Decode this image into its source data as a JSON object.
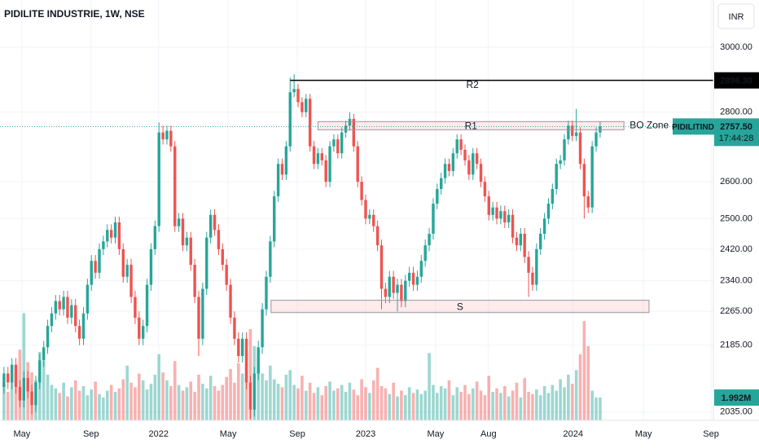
{
  "chart_data": {
    "type": "candlestick",
    "title": "PIDILITE INDUSTRIE, 1W, NSE",
    "currency": "INR",
    "symbol": "PIDILITIND",
    "last_price": {
      "value": 2757.5,
      "label": "2757.50"
    },
    "countdown": "17:44:28",
    "up_color": "#26a69a",
    "down_color": "#ef5350",
    "log_scale": true,
    "grid": true,
    "xlim": [
      -1,
      178.5
    ],
    "xticks": [
      {
        "value": 4.5,
        "label": "May"
      },
      {
        "value": 21.9,
        "label": "Sep"
      },
      {
        "value": 38.9,
        "label": "2022"
      },
      {
        "value": 56.4,
        "label": "May"
      },
      {
        "value": 73.8,
        "label": "Sep"
      },
      {
        "value": 91.0,
        "label": "2023"
      },
      {
        "value": 108.6,
        "label": "May"
      },
      {
        "value": 121.9,
        "label": "Aug"
      },
      {
        "value": 143.2,
        "label": "2024"
      },
      {
        "value": 160.9,
        "label": "May"
      },
      {
        "value": 177.9,
        "label": "Sep"
      }
    ],
    "ylim": [
      2017,
      3155
    ],
    "yticks": [
      {
        "value": 3000,
        "label": "3000.00"
      },
      {
        "value": 2800,
        "label": "2800.00"
      },
      {
        "value": 2600,
        "label": "2600.00"
      },
      {
        "value": 2500,
        "label": "2500.00"
      },
      {
        "value": 2420,
        "label": "2420.00"
      },
      {
        "value": 2340,
        "label": "2340.00"
      },
      {
        "value": 2265,
        "label": "2265.00"
      },
      {
        "value": 2185,
        "label": "2185.00"
      },
      {
        "value": 2035,
        "label": "2035.00"
      }
    ],
    "volume_ylim": [
      0,
      10
    ],
    "volume_label": {
      "value": 1.992,
      "label": "1.992M"
    },
    "levels": [
      {
        "name": "R2",
        "value": {
          "value": 2896.3,
          "label": "2896.30"
        },
        "from": 72,
        "color": "#f23645"
      }
    ],
    "zones": [
      {
        "name": "R1",
        "top": 2772,
        "bottom": 2748,
        "from": 79,
        "to": 156,
        "color": "#f23645",
        "note": "BO Zone"
      },
      {
        "name": "S",
        "top": 2292,
        "bottom": 2262,
        "from": 67.2,
        "to": 162.3,
        "color": "#131722"
      }
    ],
    "open": [
      2090,
      2120,
      2100,
      2140,
      2090,
      2060,
      2110,
      2080,
      2050,
      2100,
      2150,
      2180,
      2230,
      2260,
      2290,
      2270,
      2300,
      2250,
      2280,
      2230,
      2200,
      2260,
      2330,
      2390,
      2360,
      2420,
      2440,
      2470,
      2450,
      2490,
      2420,
      2350,
      2380,
      2300,
      2250,
      2200,
      2230,
      2330,
      2420,
      2480,
      2740,
      2720,
      2745,
      2700,
      2480,
      2500,
      2430,
      2450,
      2380,
      2300,
      2200,
      2320,
      2450,
      2510,
      2470,
      2420,
      2380,
      2330,
      2250,
      2200,
      2160,
      2200,
      2100,
      2040,
      2120,
      2180,
      2270,
      2350,
      2440,
      2560,
      2650,
      2620,
      2700,
      2860,
      2870,
      2830,
      2800,
      2840,
      2700,
      2650,
      2680,
      2660,
      2600,
      2700,
      2720,
      2680,
      2740,
      2760,
      2780,
      2700,
      2600,
      2550,
      2500,
      2510,
      2480,
      2430,
      2320,
      2300,
      2350,
      2310,
      2330,
      2290,
      2340,
      2360,
      2330,
      2350,
      2390,
      2430,
      2460,
      2540,
      2580,
      2610,
      2650,
      2630,
      2680,
      2720,
      2690,
      2660,
      2620,
      2680,
      2650,
      2600,
      2560,
      2510,
      2530,
      2500,
      2520,
      2490,
      2510,
      2450,
      2430,
      2460,
      2400,
      2360,
      2330,
      2420,
      2460,
      2500,
      2540,
      2580,
      2650,
      2660,
      2720,
      2760,
      2730,
      2740,
      2650,
      2560,
      2530,
      2700,
      2740
    ],
    "high": [
      2135,
      2135,
      2155,
      2155,
      2105,
      2125,
      2125,
      2095,
      2115,
      2165,
      2195,
      2245,
      2275,
      2305,
      2305,
      2315,
      2315,
      2295,
      2295,
      2245,
      2275,
      2345,
      2405,
      2405,
      2435,
      2455,
      2485,
      2485,
      2505,
      2505,
      2435,
      2395,
      2395,
      2315,
      2265,
      2245,
      2345,
      2435,
      2495,
      2770,
      2760,
      2760,
      2760,
      2715,
      2515,
      2515,
      2465,
      2465,
      2395,
      2315,
      2335,
      2465,
      2525,
      2525,
      2485,
      2435,
      2395,
      2345,
      2265,
      2215,
      2215,
      2215,
      2115,
      2135,
      2195,
      2285,
      2365,
      2455,
      2575,
      2665,
      2665,
      2715,
      2905,
      2915,
      2885,
      2845,
      2855,
      2855,
      2715,
      2695,
      2695,
      2675,
      2715,
      2735,
      2735,
      2755,
      2775,
      2800,
      2795,
      2715,
      2615,
      2565,
      2525,
      2525,
      2495,
      2445,
      2335,
      2365,
      2365,
      2345,
      2345,
      2355,
      2375,
      2375,
      2365,
      2405,
      2445,
      2475,
      2555,
      2595,
      2625,
      2665,
      2665,
      2695,
      2735,
      2735,
      2705,
      2675,
      2695,
      2695,
      2665,
      2615,
      2575,
      2545,
      2545,
      2535,
      2535,
      2525,
      2525,
      2465,
      2475,
      2475,
      2415,
      2375,
      2435,
      2475,
      2515,
      2555,
      2595,
      2665,
      2675,
      2735,
      2775,
      2775,
      2810,
      2755,
      2665,
      2575,
      2715,
      2755,
      2772
    ],
    "low": [
      2075,
      2085,
      2085,
      2075,
      2045,
      2045,
      2065,
      2030,
      2035,
      2085,
      2135,
      2165,
      2215,
      2245,
      2255,
      2255,
      2235,
      2235,
      2215,
      2185,
      2185,
      2245,
      2315,
      2345,
      2345,
      2405,
      2425,
      2435,
      2435,
      2405,
      2335,
      2335,
      2285,
      2235,
      2185,
      2185,
      2215,
      2315,
      2405,
      2465,
      2705,
      2705,
      2685,
      2465,
      2465,
      2415,
      2415,
      2365,
      2285,
      2160,
      2185,
      2305,
      2435,
      2455,
      2405,
      2365,
      2315,
      2235,
      2185,
      2145,
      2145,
      2085,
      2020,
      2025,
      2105,
      2165,
      2255,
      2335,
      2425,
      2545,
      2605,
      2605,
      2685,
      2845,
      2815,
      2785,
      2785,
      2685,
      2635,
      2635,
      2645,
      2585,
      2585,
      2685,
      2665,
      2665,
      2725,
      2745,
      2685,
      2585,
      2535,
      2485,
      2485,
      2465,
      2415,
      2270,
      2285,
      2285,
      2295,
      2265,
      2275,
      2275,
      2325,
      2315,
      2315,
      2335,
      2375,
      2415,
      2445,
      2525,
      2565,
      2595,
      2615,
      2615,
      2665,
      2675,
      2645,
      2605,
      2605,
      2635,
      2585,
      2545,
      2495,
      2495,
      2485,
      2485,
      2475,
      2475,
      2435,
      2415,
      2415,
      2385,
      2300,
      2315,
      2315,
      2405,
      2445,
      2485,
      2525,
      2565,
      2635,
      2645,
      2705,
      2715,
      2715,
      2635,
      2500,
      2515,
      2515,
      2685,
      2725
    ],
    "close": [
      2120,
      2100,
      2140,
      2090,
      2060,
      2110,
      2080,
      2050,
      2100,
      2150,
      2180,
      2230,
      2260,
      2290,
      2270,
      2300,
      2250,
      2280,
      2230,
      2200,
      2260,
      2330,
      2390,
      2360,
      2420,
      2440,
      2470,
      2450,
      2490,
      2420,
      2350,
      2380,
      2300,
      2250,
      2200,
      2230,
      2330,
      2420,
      2480,
      2740,
      2720,
      2745,
      2700,
      2480,
      2500,
      2430,
      2450,
      2380,
      2300,
      2200,
      2320,
      2450,
      2510,
      2470,
      2420,
      2380,
      2330,
      2250,
      2200,
      2160,
      2200,
      2100,
      2040,
      2120,
      2180,
      2270,
      2350,
      2440,
      2560,
      2650,
      2620,
      2700,
      2860,
      2870,
      2830,
      2800,
      2840,
      2700,
      2650,
      2680,
      2660,
      2600,
      2700,
      2720,
      2680,
      2740,
      2760,
      2780,
      2700,
      2600,
      2550,
      2500,
      2510,
      2480,
      2430,
      2320,
      2300,
      2350,
      2310,
      2330,
      2290,
      2340,
      2360,
      2330,
      2350,
      2390,
      2430,
      2460,
      2540,
      2580,
      2610,
      2650,
      2630,
      2680,
      2720,
      2690,
      2660,
      2620,
      2680,
      2650,
      2600,
      2560,
      2510,
      2530,
      2500,
      2520,
      2490,
      2510,
      2450,
      2430,
      2460,
      2400,
      2360,
      2330,
      2420,
      2460,
      2500,
      2540,
      2580,
      2650,
      2660,
      2720,
      2760,
      2730,
      2740,
      2650,
      2560,
      2530,
      2700,
      2740,
      2757.5
    ],
    "volume": [
      3.2,
      2.5,
      3.6,
      4.8,
      6.2,
      9.4,
      5.1,
      4.2,
      3.5,
      6.0,
      5.2,
      4.0,
      3.1,
      2.8,
      2.4,
      3.3,
      2.1,
      2.9,
      3.5,
      2.6,
      3.0,
      2.2,
      2.7,
      3.4,
      2.3,
      2.0,
      2.6,
      3.1,
      2.5,
      2.8,
      3.6,
      4.8,
      3.3,
      2.9,
      4.1,
      3.5,
      2.7,
      3.2,
      4.0,
      5.8,
      4.2,
      3.5,
      3.0,
      5.2,
      3.1,
      2.6,
      2.9,
      3.4,
      2.5,
      4.0,
      3.2,
      2.8,
      3.9,
      3.0,
      2.6,
      3.1,
      3.8,
      4.5,
      3.3,
      5.0,
      4.1,
      6.2,
      8.0,
      6.5,
      5.2,
      4.1,
      3.5,
      4.8,
      3.6,
      3.2,
      2.9,
      4.0,
      4.4,
      3.1,
      2.8,
      3.9,
      2.6,
      3.3,
      2.4,
      2.9,
      2.2,
      3.0,
      3.4,
      2.6,
      2.8,
      3.1,
      2.5,
      3.3,
      2.7,
      2.2,
      3.6,
      2.9,
      2.4,
      3.5,
      4.6,
      3.0,
      2.8,
      2.3,
      3.3,
      2.1,
      2.6,
      2.2,
      2.9,
      2.4,
      2.7,
      2.3,
      2.6,
      5.9,
      3.1,
      2.4,
      3.0,
      2.8,
      3.5,
      2.2,
      2.9,
      2.5,
      3.1,
      2.3,
      2.8,
      3.4,
      2.6,
      2.2,
      3.9,
      2.5,
      2.8,
      2.4,
      3.0,
      2.1,
      2.6,
      3.3,
      2.0,
      3.7,
      2.5,
      2.3,
      2.7,
      2.2,
      3.0,
      2.4,
      3.1,
      2.6,
      3.6,
      2.9,
      4.0,
      3.2,
      4.4,
      5.8,
      8.7,
      6.5,
      2.6,
      2.0,
      1.992
    ]
  }
}
